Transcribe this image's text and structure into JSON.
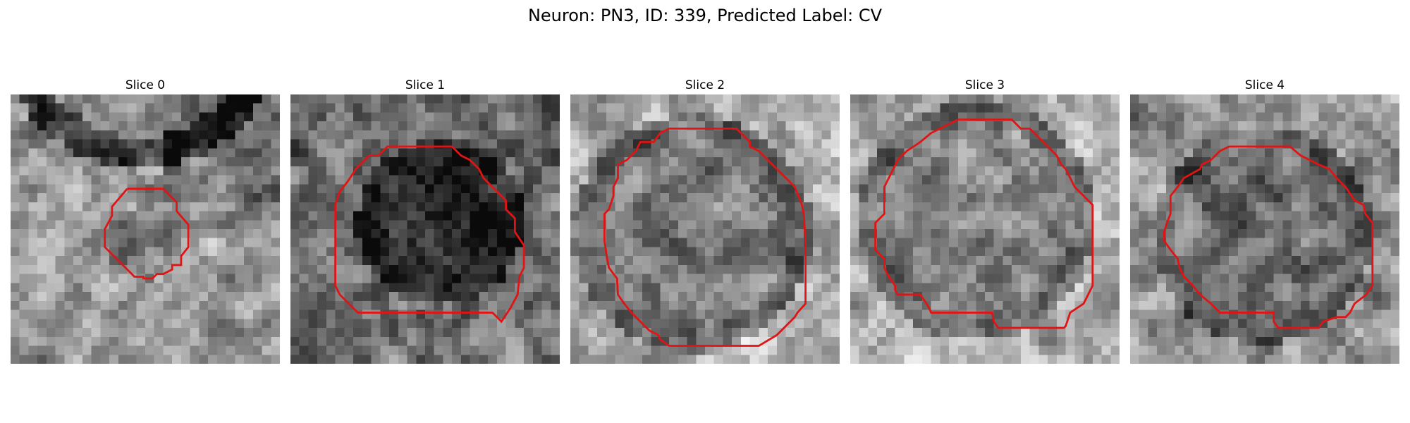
{
  "title": "Neuron: PN3, ID: 339, Predicted Label: CV",
  "panels": [
    {
      "label": "Slice 0",
      "base": 150,
      "core": 115,
      "ring": 0,
      "seed": 11
    },
    {
      "label": "Slice 1",
      "base": 110,
      "core": 40,
      "ring": 0,
      "seed": 23
    },
    {
      "label": "Slice 2",
      "base": 170,
      "core": 120,
      "ring": 60,
      "seed": 37
    },
    {
      "label": "Slice 3",
      "base": 175,
      "core": 135,
      "ring": 65,
      "seed": 53
    },
    {
      "label": "Slice 4",
      "base": 150,
      "core": 105,
      "ring": 50,
      "seed": 71
    }
  ],
  "contour_color": "#e01414"
}
